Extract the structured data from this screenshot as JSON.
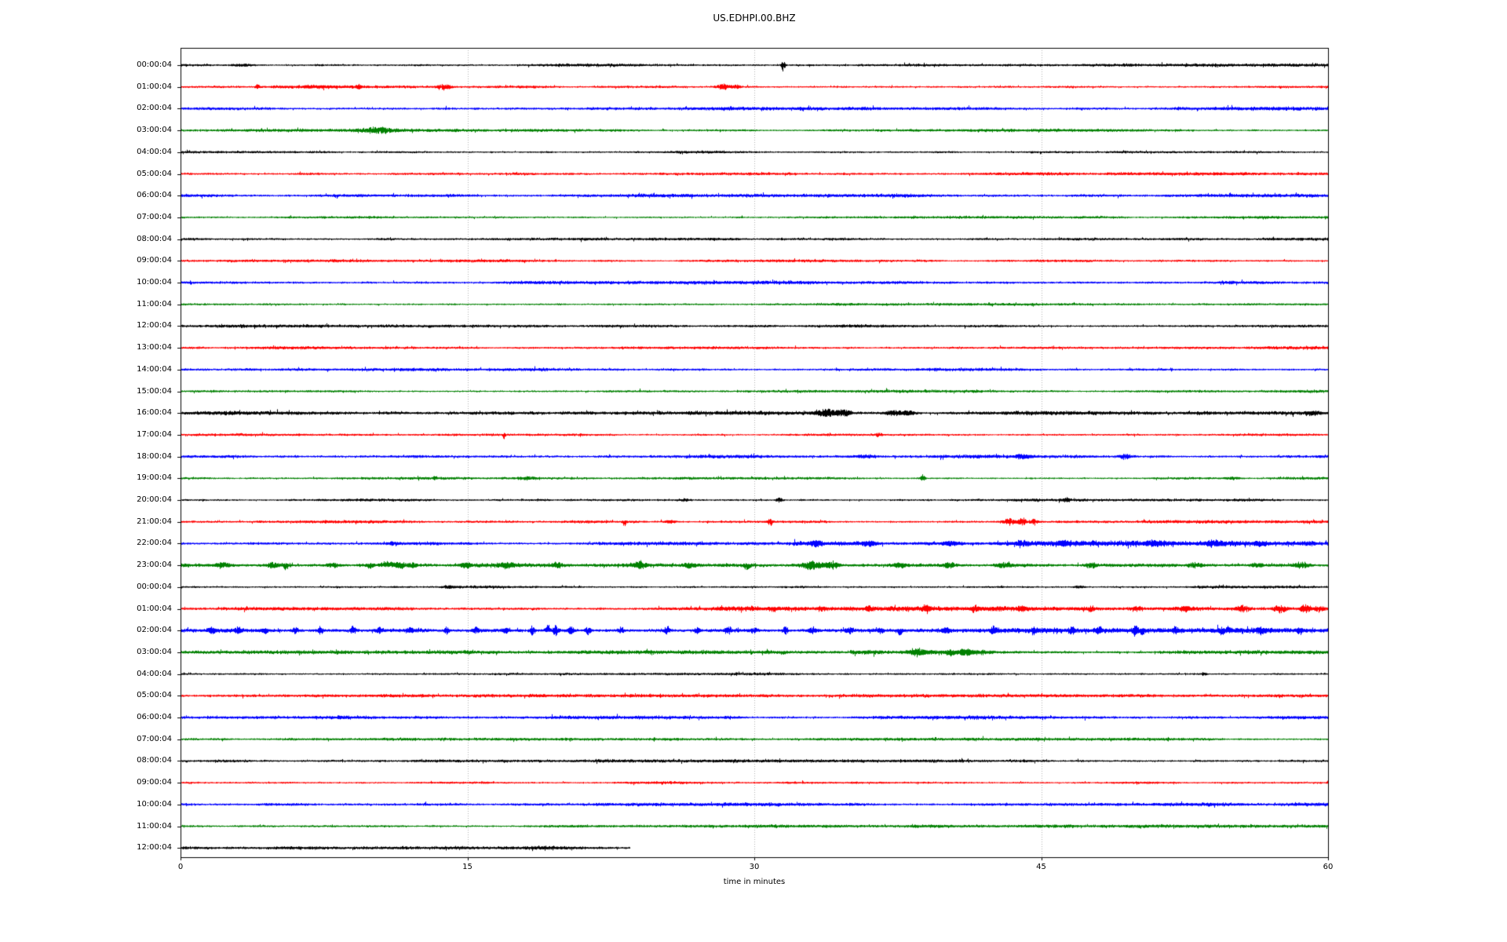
{
  "title": "US.EDHPI.00.BHZ",
  "chart_data": {
    "type": "line",
    "subtype": "helicorder-dayplot",
    "title": "US.EDHPI.00.BHZ",
    "xlabel": "time in minutes",
    "xlim": [
      0,
      60
    ],
    "x_ticks": [
      0,
      15,
      30,
      45,
      60
    ],
    "grid_minutes": [
      15,
      30,
      45
    ],
    "grid_on": true,
    "legend": "none",
    "colors": {
      "black": "#000000",
      "red": "#ff0000",
      "blue": "#0000ff",
      "green": "#008000",
      "grid": "#b0b0b0",
      "spine": "#000000",
      "background": "#ffffff"
    },
    "color_cycle": [
      "black",
      "red",
      "blue",
      "green"
    ],
    "rows": [
      {
        "label": "00:00:04",
        "color": "black",
        "noise": 1.2,
        "end_min": 60,
        "spans": [],
        "events": [
          [
            3.2,
            1.5,
            0.4,
            "b"
          ],
          [
            31.5,
            8,
            0.07,
            "b"
          ]
        ]
      },
      {
        "label": "01:00:04",
        "color": "red",
        "noise": 1.2,
        "end_min": 60,
        "spans": [],
        "events": [
          [
            4.0,
            2.5,
            0.09,
            "b"
          ],
          [
            7.0,
            1.2,
            0.9,
            "b"
          ],
          [
            9.3,
            2.5,
            0.09,
            "b"
          ],
          [
            13.8,
            3.5,
            0.22,
            "b"
          ],
          [
            28.4,
            3.5,
            0.28,
            "b"
          ],
          [
            29.1,
            2.5,
            0.14,
            "b"
          ]
        ]
      },
      {
        "label": "02:00:04",
        "color": "blue",
        "noise": 1.4,
        "end_min": 60,
        "spans": [],
        "events": []
      },
      {
        "label": "03:00:04",
        "color": "green",
        "noise": 1.2,
        "end_min": 60,
        "spans": [],
        "events": [
          [
            10.3,
            3.8,
            0.65,
            "b"
          ]
        ]
      },
      {
        "label": "04:00:04",
        "color": "black",
        "noise": 1.1,
        "end_min": 60,
        "spans": [],
        "events": []
      },
      {
        "label": "05:00:04",
        "color": "red",
        "noise": 1.2,
        "end_min": 60,
        "spans": [],
        "events": []
      },
      {
        "label": "06:00:04",
        "color": "blue",
        "noise": 1.4,
        "end_min": 60,
        "spans": [],
        "events": []
      },
      {
        "label": "07:00:04",
        "color": "green",
        "noise": 1.1,
        "end_min": 60,
        "spans": [],
        "events": []
      },
      {
        "label": "08:00:04",
        "color": "black",
        "noise": 1.2,
        "end_min": 60,
        "spans": [],
        "events": []
      },
      {
        "label": "09:00:04",
        "color": "red",
        "noise": 1.1,
        "end_min": 60,
        "spans": [],
        "events": []
      },
      {
        "label": "10:00:04",
        "color": "blue",
        "noise": 1.4,
        "end_min": 60,
        "spans": [],
        "events": []
      },
      {
        "label": "11:00:04",
        "color": "green",
        "noise": 1.1,
        "end_min": 60,
        "spans": [],
        "events": []
      },
      {
        "label": "12:00:04",
        "color": "black",
        "noise": 1.3,
        "end_min": 60,
        "spans": [],
        "events": []
      },
      {
        "label": "13:00:04",
        "color": "red",
        "noise": 1.2,
        "end_min": 60,
        "spans": [],
        "events": []
      },
      {
        "label": "14:00:04",
        "color": "blue",
        "noise": 1.3,
        "end_min": 60,
        "spans": [],
        "events": []
      },
      {
        "label": "15:00:04",
        "color": "green",
        "noise": 1.1,
        "end_min": 60,
        "spans": [],
        "events": []
      },
      {
        "label": "16:00:04",
        "color": "black",
        "noise": 1.5,
        "end_min": 60,
        "spans": [],
        "events": [
          [
            33.8,
            4.5,
            0.45,
            "b"
          ],
          [
            34.7,
            3.5,
            0.25,
            "b"
          ],
          [
            37.3,
            3.0,
            0.35,
            "b"
          ],
          [
            38.1,
            2.5,
            0.25,
            "b"
          ],
          [
            59.2,
            2.2,
            0.18,
            "b"
          ]
        ]
      },
      {
        "label": "17:00:04",
        "color": "red",
        "noise": 1.1,
        "end_min": 60,
        "spans": [],
        "events": [
          [
            16.9,
            7,
            0.05,
            "d"
          ],
          [
            36.5,
            2.5,
            0.1,
            "b"
          ]
        ]
      },
      {
        "label": "18:00:04",
        "color": "blue",
        "noise": 1.4,
        "end_min": 60,
        "spans": [],
        "events": [
          [
            35.8,
            2.2,
            0.3,
            "b"
          ],
          [
            44.0,
            2.5,
            0.3,
            "b"
          ],
          [
            49.4,
            3.0,
            0.22,
            "b"
          ]
        ]
      },
      {
        "label": "19:00:04",
        "color": "green",
        "noise": 1.1,
        "end_min": 60,
        "spans": [],
        "events": [
          [
            13.3,
            2.2,
            0.08,
            "u"
          ],
          [
            18.2,
            1.8,
            0.4,
            "b"
          ],
          [
            38.8,
            4.5,
            0.09,
            "b"
          ],
          [
            55.0,
            1.6,
            0.3,
            "b"
          ]
        ]
      },
      {
        "label": "20:00:04",
        "color": "black",
        "noise": 1.1,
        "end_min": 60,
        "spans": [],
        "events": [
          [
            26.3,
            1.8,
            0.18,
            "b"
          ],
          [
            31.3,
            3.5,
            0.12,
            "b"
          ],
          [
            46.3,
            2.8,
            0.12,
            "b"
          ]
        ]
      },
      {
        "label": "21:00:04",
        "color": "red",
        "noise": 1.2,
        "end_min": 60,
        "spans": [
          [
            20,
            24,
            1.3
          ]
        ],
        "events": [
          [
            23.2,
            7,
            0.06,
            "d"
          ],
          [
            25.6,
            1.8,
            0.2,
            "b"
          ],
          [
            30.8,
            4,
            0.09,
            "b"
          ],
          [
            43.3,
            4,
            0.22,
            "b"
          ],
          [
            44.0,
            4.5,
            0.18,
            "b"
          ],
          [
            44.6,
            3,
            0.14,
            "b"
          ]
        ]
      },
      {
        "label": "22:00:04",
        "color": "blue",
        "noise": 1.4,
        "end_min": 60,
        "spans": [
          [
            32,
            60,
            1.5
          ]
        ],
        "events": [
          [
            11.2,
            1.8,
            0.2,
            "b"
          ],
          [
            33.2,
            3.5,
            0.25,
            "b"
          ],
          [
            36.0,
            2.5,
            0.25,
            "b"
          ],
          [
            40.3,
            2.5,
            0.25,
            "b"
          ],
          [
            44.0,
            3.0,
            0.25,
            "b"
          ],
          [
            46.2,
            2.5,
            0.22,
            "b"
          ],
          [
            50.8,
            2.5,
            0.25,
            "b"
          ],
          [
            54.0,
            2.5,
            0.25,
            "b"
          ],
          [
            56.5,
            2.5,
            0.25,
            "b"
          ],
          [
            59.0,
            2.5,
            0.25,
            "b"
          ]
        ]
      },
      {
        "label": "23:00:04",
        "color": "green",
        "noise": 1.9,
        "end_min": 60,
        "spans": [],
        "events": [
          [
            2.2,
            2.5,
            0.25,
            "b"
          ],
          [
            4.8,
            3,
            0.25,
            "b"
          ],
          [
            5.5,
            6,
            0.09,
            "d"
          ],
          [
            8.0,
            2.5,
            0.25,
            "b"
          ],
          [
            9.9,
            4,
            0.15,
            "d"
          ],
          [
            10.8,
            5,
            0.25,
            "u"
          ],
          [
            11.5,
            4,
            0.2,
            "b"
          ],
          [
            12.1,
            3,
            0.18,
            "b"
          ],
          [
            14.9,
            3,
            0.18,
            "b"
          ],
          [
            17.0,
            2.5,
            0.25,
            "b"
          ],
          [
            19.7,
            3.5,
            0.2,
            "b"
          ],
          [
            24.0,
            3.5,
            0.25,
            "b"
          ],
          [
            26.6,
            2.5,
            0.25,
            "b"
          ],
          [
            29.6,
            4.5,
            0.15,
            "d"
          ],
          [
            33.0,
            5,
            0.45,
            "b"
          ],
          [
            34.1,
            4,
            0.25,
            "b"
          ],
          [
            37.6,
            3.5,
            0.2,
            "b"
          ],
          [
            40.2,
            3,
            0.25,
            "b"
          ],
          [
            43.0,
            3,
            0.25,
            "b"
          ],
          [
            47.6,
            3.5,
            0.2,
            "b"
          ],
          [
            53.0,
            3,
            0.25,
            "b"
          ],
          [
            56.3,
            2.5,
            0.25,
            "b"
          ],
          [
            58.6,
            3.5,
            0.25,
            "b"
          ]
        ]
      },
      {
        "label": "00:00:04",
        "color": "black",
        "noise": 1.2,
        "end_min": 60,
        "spans": [],
        "events": [
          [
            14.0,
            1.4,
            0.25,
            "b"
          ],
          [
            47.0,
            1.4,
            0.2,
            "b"
          ]
        ]
      },
      {
        "label": "01:00:04",
        "color": "red",
        "noise": 1.3,
        "end_min": 60,
        "spans": [
          [
            28,
            60,
            1.5
          ]
        ],
        "events": [
          [
            31.0,
            3,
            0.1,
            "d"
          ],
          [
            33.5,
            2.5,
            0.15,
            "b"
          ],
          [
            36.0,
            2.5,
            0.15,
            "b"
          ],
          [
            39.0,
            3.5,
            0.15,
            "b"
          ],
          [
            41.5,
            2.5,
            0.15,
            "b"
          ],
          [
            44.0,
            2.5,
            0.15,
            "b"
          ],
          [
            47.6,
            4.5,
            0.1,
            "d"
          ],
          [
            50.0,
            3,
            0.15,
            "b"
          ],
          [
            52.5,
            3,
            0.15,
            "b"
          ],
          [
            55.5,
            4,
            0.25,
            "b"
          ],
          [
            57.5,
            4.5,
            0.25,
            "b"
          ],
          [
            58.8,
            5,
            0.2,
            "b"
          ],
          [
            59.5,
            4,
            0.15,
            "b"
          ]
        ]
      },
      {
        "label": "02:00:04",
        "color": "blue",
        "noise": 2.0,
        "end_min": 60,
        "spans": [],
        "events": [
          [
            1.6,
            3.5,
            0.12,
            "b"
          ],
          [
            3.0,
            3.5,
            0.12,
            "b"
          ],
          [
            4.4,
            4,
            0.1,
            "d"
          ],
          [
            6.0,
            3.5,
            0.12,
            "b"
          ],
          [
            7.3,
            4.5,
            0.1,
            "b"
          ],
          [
            9.0,
            5.5,
            0.09,
            "b"
          ],
          [
            10.4,
            3.5,
            0.12,
            "b"
          ],
          [
            12.0,
            3.5,
            0.12,
            "b"
          ],
          [
            13.9,
            4.5,
            0.1,
            "b"
          ],
          [
            15.4,
            3.5,
            0.12,
            "b"
          ],
          [
            17.0,
            3,
            0.12,
            "b"
          ],
          [
            18.4,
            6.5,
            0.1,
            "b"
          ],
          [
            19.2,
            8,
            0.08,
            "u"
          ],
          [
            19.6,
            7,
            0.09,
            "b"
          ],
          [
            20.4,
            7,
            0.09,
            "b"
          ],
          [
            21.3,
            5,
            0.1,
            "b"
          ],
          [
            23.0,
            4,
            0.12,
            "b"
          ],
          [
            25.4,
            4.5,
            0.1,
            "b"
          ],
          [
            27.0,
            3.5,
            0.12,
            "b"
          ],
          [
            28.6,
            3.5,
            0.12,
            "b"
          ],
          [
            30.0,
            3,
            0.15,
            "b"
          ],
          [
            31.6,
            4.5,
            0.1,
            "b"
          ],
          [
            33.0,
            3.5,
            0.12,
            "b"
          ],
          [
            35.0,
            3.5,
            0.15,
            "b"
          ],
          [
            36.6,
            4,
            0.1,
            "b"
          ],
          [
            37.6,
            6,
            0.09,
            "d"
          ],
          [
            40.0,
            3.5,
            0.12,
            "b"
          ],
          [
            42.5,
            4.5,
            0.1,
            "b"
          ],
          [
            44.6,
            3.5,
            0.12,
            "b"
          ],
          [
            46.6,
            4.5,
            0.1,
            "b"
          ],
          [
            48.0,
            3.5,
            0.12,
            "b"
          ],
          [
            49.9,
            6.5,
            0.08,
            "b"
          ],
          [
            50.3,
            5,
            0.1,
            "d"
          ],
          [
            52.0,
            3.5,
            0.12,
            "b"
          ],
          [
            54.4,
            6,
            0.09,
            "d"
          ],
          [
            54.8,
            5,
            0.1,
            "u"
          ],
          [
            56.5,
            3.5,
            0.12,
            "b"
          ],
          [
            58.5,
            4.5,
            0.1,
            "b"
          ]
        ]
      },
      {
        "label": "03:00:04",
        "color": "green",
        "noise": 1.4,
        "end_min": 60,
        "spans": [
          [
            35,
            42.5,
            1.7
          ]
        ],
        "events": [
          [
            31.5,
            2.5,
            0.12,
            "d"
          ],
          [
            38.5,
            3,
            0.3,
            "b"
          ],
          [
            40.2,
            4.5,
            0.18,
            "d"
          ],
          [
            41.0,
            3,
            0.25,
            "b"
          ]
        ]
      },
      {
        "label": "04:00:04",
        "color": "black",
        "noise": 1.1,
        "end_min": 60,
        "spans": [],
        "events": [
          [
            53.5,
            2.2,
            0.08,
            "b"
          ]
        ]
      },
      {
        "label": "05:00:04",
        "color": "red",
        "noise": 1.2,
        "end_min": 60,
        "spans": [],
        "events": []
      },
      {
        "label": "06:00:04",
        "color": "blue",
        "noise": 1.4,
        "end_min": 60,
        "spans": [],
        "events": []
      },
      {
        "label": "07:00:04",
        "color": "green",
        "noise": 1.1,
        "end_min": 60,
        "spans": [],
        "events": []
      },
      {
        "label": "08:00:04",
        "color": "black",
        "noise": 1.2,
        "end_min": 60,
        "spans": [],
        "events": []
      },
      {
        "label": "09:00:04",
        "color": "red",
        "noise": 1.1,
        "end_min": 60,
        "spans": [],
        "events": []
      },
      {
        "label": "10:00:04",
        "color": "blue",
        "noise": 1.4,
        "end_min": 60,
        "spans": [],
        "events": []
      },
      {
        "label": "11:00:04",
        "color": "green",
        "noise": 1.2,
        "end_min": 60,
        "spans": [],
        "events": []
      },
      {
        "label": "12:00:04",
        "color": "black",
        "noise": 1.6,
        "end_min": 23.5,
        "spans": [],
        "events": []
      }
    ]
  }
}
